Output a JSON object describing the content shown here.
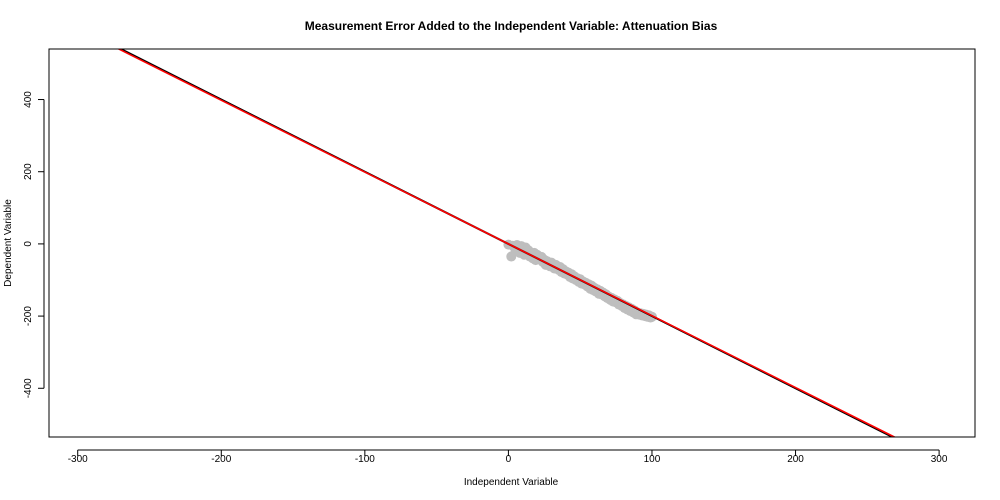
{
  "chart_data": {
    "type": "scatter",
    "title": "Measurement Error Added to the Independent Variable: Attenuation Bias",
    "xlabel": "Independent Variable",
    "ylabel": "Dependent Variable",
    "xlim": [
      -320,
      325
    ],
    "ylim": [
      -535,
      540
    ],
    "xticks": [
      -300,
      -200,
      -100,
      0,
      100,
      200,
      300
    ],
    "yticks": [
      -400,
      -200,
      0,
      200,
      400
    ],
    "grid": false,
    "legend": "none",
    "points_color": "#bebebe",
    "line_colors": [
      "#000000",
      "#ff0000"
    ],
    "series": [
      {
        "type": "scatter",
        "x": [
          0,
          2,
          3,
          4,
          5,
          6,
          7,
          8,
          9,
          10,
          11,
          12,
          13,
          14,
          15,
          16,
          17,
          18,
          19,
          20,
          21,
          22,
          23,
          24,
          25,
          26,
          27,
          28,
          29,
          30,
          31,
          32,
          33,
          34,
          35,
          36,
          37,
          38,
          39,
          40,
          41,
          42,
          43,
          44,
          45,
          46,
          47,
          48,
          49,
          50,
          51,
          52,
          53,
          54,
          55,
          56,
          57,
          58,
          59,
          60,
          61,
          62,
          63,
          64,
          65,
          66,
          67,
          68,
          69,
          70,
          71,
          72,
          73,
          74,
          75,
          76,
          77,
          78,
          79,
          80,
          81,
          82,
          83,
          84,
          85,
          86,
          87,
          88,
          89,
          90,
          91,
          92,
          93,
          94,
          95,
          96,
          97,
          98,
          99,
          100
        ],
        "y": [
          -2,
          -35,
          -5,
          -8,
          -20,
          -3,
          -12,
          -25,
          -6,
          -15,
          -30,
          -10,
          -22,
          -18,
          -35,
          -28,
          -40,
          -25,
          -45,
          -30,
          -38,
          -42,
          -36,
          -50,
          -44,
          -58,
          -48,
          -55,
          -62,
          -52,
          -60,
          -68,
          -58,
          -66,
          -72,
          -64,
          -78,
          -70,
          -82,
          -76,
          -85,
          -80,
          -92,
          -84,
          -96,
          -90,
          -100,
          -95,
          -105,
          -98,
          -110,
          -104,
          -112,
          -108,
          -118,
          -112,
          -124,
          -116,
          -128,
          -122,
          -132,
          -126,
          -138,
          -130,
          -140,
          -135,
          -145,
          -140,
          -150,
          -146,
          -155,
          -150,
          -160,
          -154,
          -162,
          -158,
          -168,
          -164,
          -172,
          -168,
          -178,
          -172,
          -182,
          -176,
          -186,
          -180,
          -190,
          -185,
          -195,
          -190,
          -196,
          -192,
          -198,
          -194,
          -200,
          -196,
          -202,
          -198,
          -204,
          -202
        ]
      },
      {
        "type": "line",
        "name": "",
        "intercept": 0,
        "slope": -2.0
      },
      {
        "type": "line",
        "name": "",
        "intercept": 0,
        "slope": -1.99
      }
    ]
  }
}
